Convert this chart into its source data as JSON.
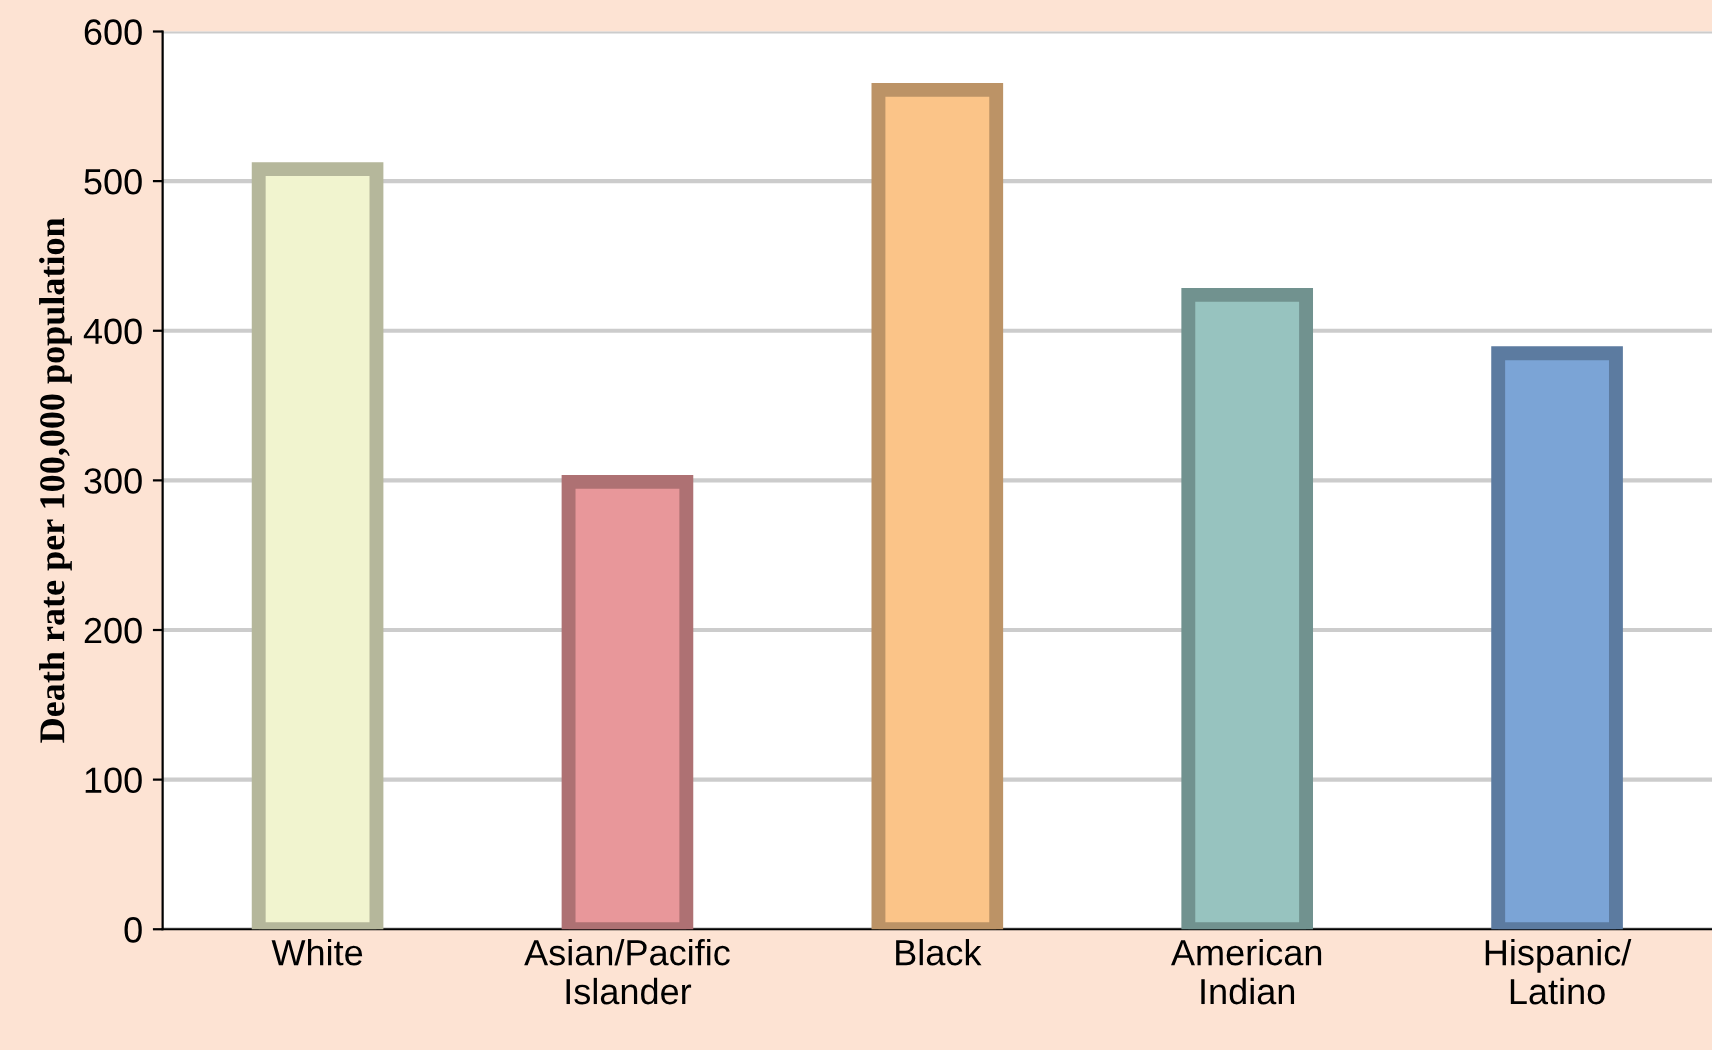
{
  "chart_data": {
    "type": "bar",
    "ylabel": "Death rate per 100,000 population",
    "categories": [
      "White",
      "Asian/Pacific\nIslander",
      "Black",
      "American\nIndian",
      "Hispanic/\nLatino"
    ],
    "values": [
      508,
      299,
      561,
      424,
      385
    ],
    "colors": [
      "#f1f4cf",
      "#e8979a",
      "#fbc488",
      "#97c3bf",
      "#7ba4d6"
    ],
    "ylim": [
      0,
      600
    ],
    "yticks": [
      0,
      100,
      200,
      300,
      400,
      500,
      600
    ],
    "grid": "y"
  }
}
